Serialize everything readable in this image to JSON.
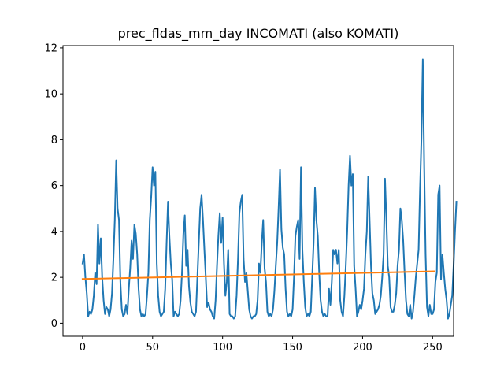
{
  "chart_data": {
    "type": "line",
    "title": "prec_fldas_mm_day INCOMATI (also KOMATI)",
    "xlabel": "",
    "ylabel": "",
    "xlim": [
      -14,
      265
    ],
    "ylim": [
      -0.57,
      12.1
    ],
    "xticks": [
      0,
      50,
      100,
      150,
      200,
      250
    ],
    "yticks": [
      0,
      2,
      4,
      6,
      8,
      10,
      12
    ],
    "grid": false,
    "legend": "none",
    "series": [
      {
        "color": "#1f77b4",
        "x_start": 0,
        "values": [
          2.6,
          3.0,
          2.0,
          1.3,
          0.3,
          0.5,
          0.4,
          0.6,
          1.2,
          2.2,
          1.7,
          4.3,
          2.6,
          3.7,
          2.0,
          1.0,
          0.4,
          0.7,
          0.6,
          0.3,
          0.6,
          1.3,
          2.8,
          4.5,
          7.1,
          5.0,
          4.5,
          1.8,
          0.6,
          0.3,
          0.4,
          0.8,
          0.4,
          1.5,
          2.4,
          3.6,
          2.8,
          4.3,
          3.9,
          3.0,
          1.5,
          0.6,
          0.3,
          0.4,
          0.3,
          0.4,
          1.2,
          2.2,
          4.5,
          5.5,
          6.8,
          6.0,
          6.6,
          2.6,
          1.2,
          0.5,
          0.3,
          0.4,
          0.5,
          1.5,
          3.5,
          5.3,
          3.8,
          2.6,
          1.9,
          0.3,
          0.5,
          0.4,
          0.3,
          0.4,
          1.0,
          2.2,
          3.9,
          4.7,
          2.5,
          3.2,
          1.6,
          0.9,
          0.5,
          0.4,
          0.3,
          0.5,
          2.0,
          3.5,
          5.0,
          5.6,
          4.5,
          3.2,
          2.0,
          0.7,
          0.9,
          0.6,
          0.5,
          0.3,
          0.2,
          1.0,
          2.5,
          3.8,
          4.8,
          3.5,
          4.6,
          2.6,
          1.2,
          1.8,
          3.2,
          0.4,
          0.3,
          0.3,
          0.2,
          0.3,
          1.2,
          2.8,
          4.8,
          5.3,
          5.6,
          2.8,
          1.8,
          2.2,
          1.4,
          0.6,
          0.3,
          0.2,
          0.3,
          0.3,
          0.4,
          1.0,
          2.6,
          2.2,
          3.5,
          4.5,
          2.4,
          1.8,
          0.5,
          0.3,
          0.4,
          0.3,
          0.6,
          1.4,
          2.5,
          3.5,
          5.0,
          6.7,
          4.1,
          3.3,
          3.0,
          1.5,
          0.5,
          0.3,
          0.4,
          0.3,
          0.6,
          2.0,
          3.8,
          4.2,
          4.5,
          2.8,
          6.8,
          3.2,
          1.8,
          0.7,
          0.3,
          0.4,
          0.3,
          0.5,
          2.0,
          3.5,
          5.9,
          4.5,
          3.8,
          2.2,
          1.0,
          0.5,
          0.3,
          0.4,
          0.3,
          0.3,
          1.5,
          0.8,
          1.8,
          3.2,
          3.0,
          3.2,
          2.6,
          3.2,
          1.0,
          0.5,
          0.3,
          1.2,
          2.5,
          4.0,
          6.0,
          7.3,
          6.0,
          6.5,
          2.5,
          1.5,
          0.3,
          0.5,
          0.8,
          0.6,
          1.0,
          1.5,
          3.0,
          4.0,
          6.4,
          4.5,
          2.5,
          1.3,
          1.0,
          0.4,
          0.5,
          0.6,
          0.8,
          1.2,
          2.0,
          3.0,
          6.3,
          4.5,
          2.5,
          2.0,
          0.7,
          0.5,
          0.5,
          0.8,
          1.3,
          2.5,
          3.2,
          5.0,
          4.5,
          3.6,
          2.2,
          1.0,
          0.4,
          0.3,
          0.8,
          0.2,
          0.5,
          1.2,
          2.0,
          2.6,
          3.2,
          5.8,
          8.0,
          11.5,
          6.8,
          3.0,
          0.7,
          0.3,
          0.8,
          0.4,
          0.4,
          0.6,
          1.8,
          2.2,
          5.6,
          6.0,
          1.9,
          3.0,
          2.2,
          1.5,
          1.0,
          0.2,
          0.4,
          0.8,
          1.2,
          2.5,
          4.0,
          5.3
        ]
      },
      {
        "color": "#ff7f0e",
        "x": [
          0,
          251
        ],
        "values": [
          1.93,
          2.26
        ]
      }
    ]
  }
}
